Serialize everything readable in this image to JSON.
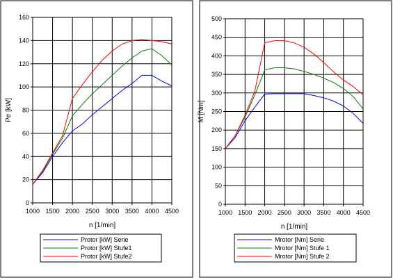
{
  "chart_data": [
    {
      "type": "line",
      "xlabel": "n  [1/min]",
      "ylabel": "Pe [kW]",
      "xlim": [
        1000,
        4500
      ],
      "ylim": [
        0,
        160
      ],
      "x_ticks": [
        "1000",
        "1500",
        "2000",
        "2500",
        "3000",
        "3500",
        "4000",
        "4500"
      ],
      "y_ticks": [
        "0",
        "20",
        "40",
        "60",
        "80",
        "100",
        "120",
        "140",
        "160"
      ],
      "grid": true,
      "legend_position": "bottom",
      "series": [
        {
          "name": "Protor [kW] Serie",
          "color": "#0000ff",
          "x": [
            1000,
            1250,
            1500,
            1750,
            2000,
            2250,
            2500,
            2750,
            3000,
            3250,
            3500,
            3750,
            4000,
            4250,
            4500
          ],
          "y": [
            16,
            26,
            40,
            52,
            62,
            68,
            76,
            83,
            90,
            97,
            103,
            110,
            110,
            105,
            101
          ]
        },
        {
          "name": "Protor [kW] Stufe1",
          "color": "#008000",
          "x": [
            1000,
            1250,
            1500,
            1750,
            2000,
            2250,
            2500,
            2750,
            3000,
            3250,
            3500,
            3750,
            4000,
            4250,
            4500
          ],
          "y": [
            16,
            27,
            42,
            56,
            75,
            85,
            94,
            102,
            110,
            118,
            125,
            131,
            133,
            127,
            119
          ]
        },
        {
          "name": "Protor [kW] Stufe2",
          "color": "#ff0000",
          "x": [
            1000,
            1250,
            1500,
            1750,
            2000,
            2250,
            2500,
            2750,
            3000,
            3250,
            3500,
            3750,
            4000,
            4250,
            4500
          ],
          "y": [
            16,
            28,
            43,
            58,
            90,
            102,
            113,
            123,
            131,
            137,
            140,
            141,
            140,
            139,
            137
          ]
        }
      ]
    },
    {
      "type": "line",
      "xlabel": "n  [1/min]",
      "ylabel": "M  [Nm]",
      "xlim": [
        1000,
        4500
      ],
      "ylim": [
        0,
        500
      ],
      "x_ticks": [
        "1000",
        "1500",
        "2000",
        "2500",
        "3000",
        "3500",
        "4000",
        "4500"
      ],
      "y_ticks": [
        "0",
        "50",
        "100",
        "150",
        "200",
        "250",
        "300",
        "350",
        "400",
        "450",
        "500"
      ],
      "grid": true,
      "legend_position": "bottom",
      "series": [
        {
          "name": "Mrotor [Nm] Serie",
          "color": "#0000ff",
          "x": [
            1000,
            1250,
            1500,
            1750,
            2000,
            2250,
            2500,
            2750,
            3000,
            3250,
            3500,
            3750,
            4000,
            4250,
            4500
          ],
          "y": [
            150,
            180,
            225,
            262,
            297,
            298,
            298,
            298,
            298,
            293,
            287,
            278,
            265,
            245,
            218
          ]
        },
        {
          "name": "Mrotor [Nm] Stufe 1",
          "color": "#008000",
          "x": [
            1000,
            1250,
            1500,
            1750,
            2000,
            2250,
            2500,
            2750,
            3000,
            3250,
            3500,
            3750,
            4000,
            4250,
            4500
          ],
          "y": [
            150,
            185,
            235,
            295,
            362,
            368,
            368,
            365,
            358,
            350,
            340,
            328,
            312,
            290,
            257
          ]
        },
        {
          "name": "Mrotor [Nm] Stufe 2",
          "color": "#ff0000",
          "x": [
            1000,
            1250,
            1500,
            1750,
            2000,
            2250,
            2500,
            2750,
            3000,
            3250,
            3500,
            3750,
            4000,
            4250,
            4500
          ],
          "y": [
            150,
            185,
            240,
            305,
            435,
            441,
            441,
            435,
            423,
            405,
            382,
            357,
            335,
            317,
            295
          ]
        }
      ]
    }
  ]
}
